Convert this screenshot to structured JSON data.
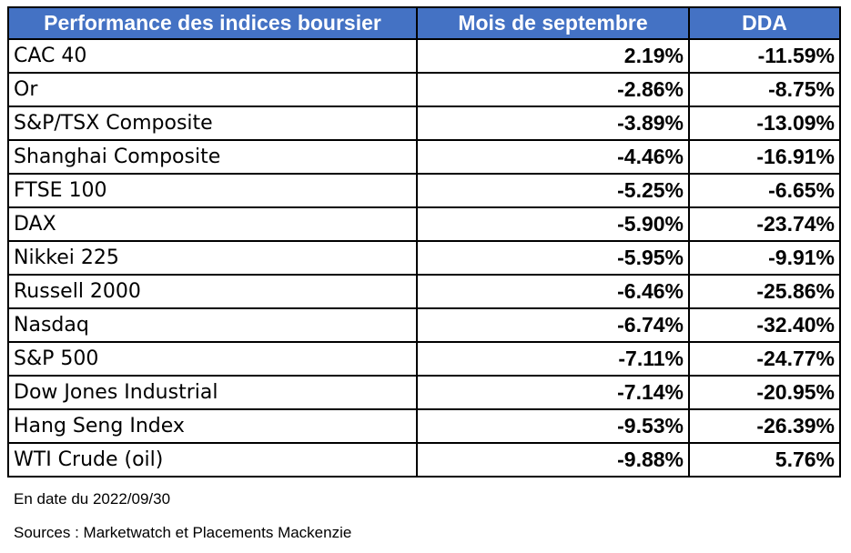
{
  "chart_data": {
    "type": "table",
    "columns": [
      "Performance des indices boursier",
      "Mois de septembre",
      "DDA"
    ],
    "rows": [
      {
        "name": "CAC 40",
        "septembre": "2.19%",
        "dda": "-11.59%"
      },
      {
        "name": "Or",
        "septembre": "-2.86%",
        "dda": "-8.75%"
      },
      {
        "name": "S&P/TSX Composite",
        "septembre": "-3.89%",
        "dda": "-13.09%"
      },
      {
        "name": "Shanghai Composite",
        "septembre": "-4.46%",
        "dda": "-16.91%"
      },
      {
        "name": "FTSE 100",
        "septembre": "-5.25%",
        "dda": "-6.65%"
      },
      {
        "name": "DAX",
        "septembre": "-5.90%",
        "dda": "-23.74%"
      },
      {
        "name": "Nikkei 225",
        "septembre": "-5.95%",
        "dda": "-9.91%"
      },
      {
        "name": "Russell 2000",
        "septembre": "-6.46%",
        "dda": "-25.86%"
      },
      {
        "name": "Nasdaq",
        "septembre": "-6.74%",
        "dda": "-32.40%"
      },
      {
        "name": "S&P 500",
        "septembre": "-7.11%",
        "dda": "-24.77%"
      },
      {
        "name": "Dow Jones Industrial",
        "septembre": "-7.14%",
        "dda": "-20.95%"
      },
      {
        "name": "Hang Seng Index",
        "septembre": "-9.53%",
        "dda": "-26.39%"
      },
      {
        "name": "WTI Crude (oil)",
        "septembre": "-9.88%",
        "dda": "5.76%"
      }
    ]
  },
  "footnotes": {
    "date": "En date du 2022/09/30",
    "sources": "Sources : Marketwatch et Placements Mackenzie"
  },
  "colors": {
    "header_bg": "#4472c4",
    "header_text": "#ffffff",
    "negative": "#ff0000",
    "positive": "#70ad47"
  }
}
